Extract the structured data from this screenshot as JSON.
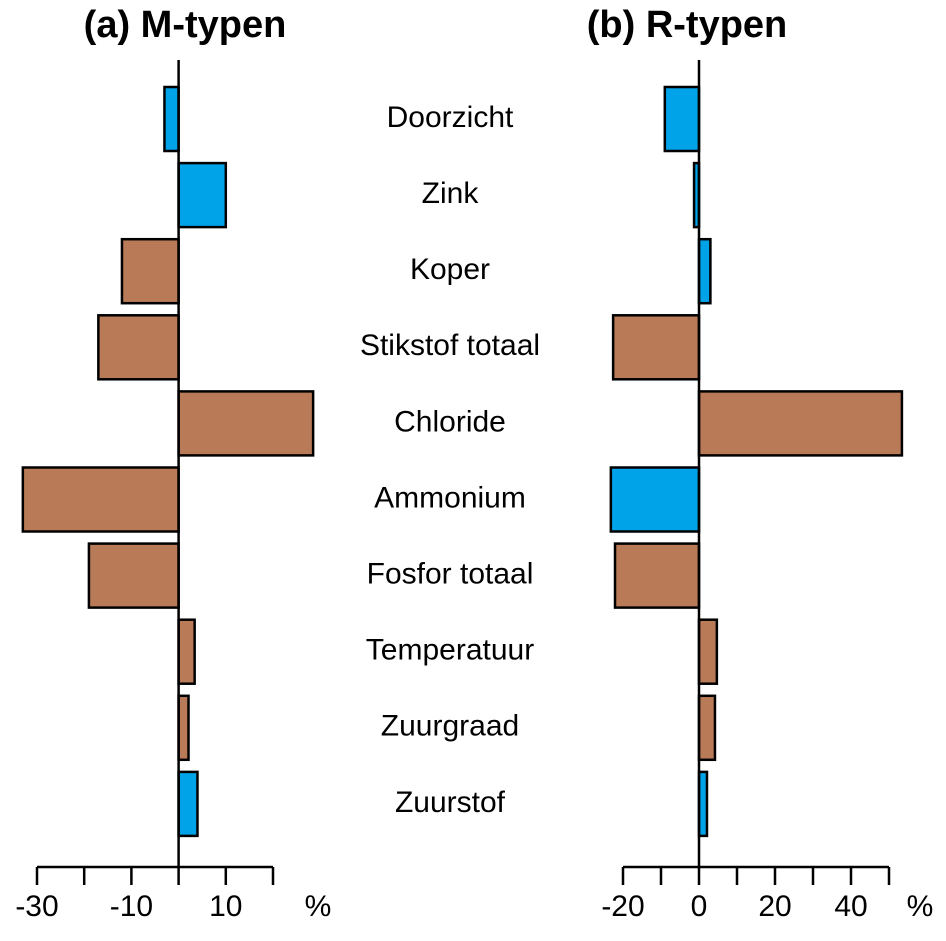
{
  "chart_data": [
    {
      "type": "bar",
      "orientation": "horizontal",
      "title": "(a) M-typen",
      "xlabel": "%",
      "categories": [
        "Doorzicht",
        "Zink",
        "Koper",
        "Stikstof totaal",
        "Chloride",
        "Ammonium",
        "Fosfor totaal",
        "Temperatuur",
        "Zuurgraad",
        "Zuurstof"
      ],
      "values": [
        -3,
        10,
        -12,
        -17,
        28.5,
        -33,
        -19,
        3.4,
        2.1,
        4
      ],
      "colors": [
        "#00a2e8",
        "#00a2e8",
        "#b97a57",
        "#b97a57",
        "#b97a57",
        "#b97a57",
        "#b97a57",
        "#b97a57",
        "#b97a57",
        "#00a2e8"
      ],
      "xlim": [
        -30,
        20
      ],
      "xticks": [
        -30,
        -10,
        10
      ],
      "minor_xticks": [
        -20,
        0,
        20
      ]
    },
    {
      "type": "bar",
      "orientation": "horizontal",
      "title": "(b) R-typen",
      "xlabel": "%",
      "values": [
        -9,
        -1.3,
        3,
        -22.6,
        53.4,
        -23.2,
        -22.1,
        4.7,
        4.2,
        2.1
      ],
      "colors": [
        "#00a2e8",
        "#00a2e8",
        "#00a2e8",
        "#b97a57",
        "#b97a57",
        "#00a2e8",
        "#b97a57",
        "#b97a57",
        "#b97a57",
        "#00a2e8"
      ],
      "xlim": [
        -20,
        50
      ],
      "xticks": [
        -20,
        0,
        20,
        40
      ],
      "minor_xticks": [
        -10,
        10,
        30,
        50
      ]
    }
  ]
}
